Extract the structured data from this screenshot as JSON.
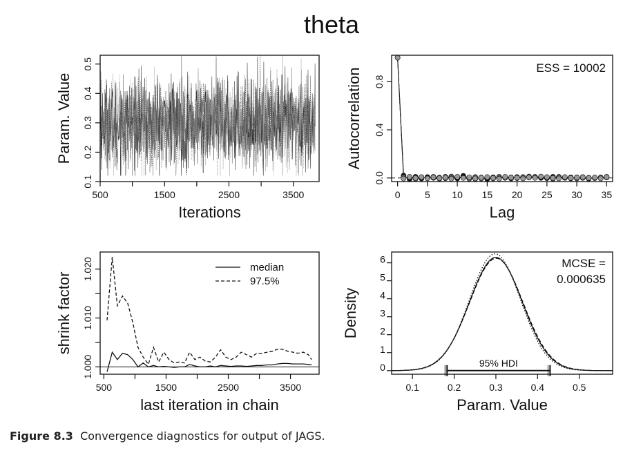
{
  "figure": {
    "title": "theta",
    "caption_label": "Figure 8.3",
    "caption_text": "Convergence diagnostics for output of JAGS."
  },
  "chart_data": [
    {
      "type": "line",
      "panel": "trace",
      "xlabel": "Iterations",
      "ylabel": "Param. Value",
      "xlim": [
        500,
        3900
      ],
      "ylim": [
        0.1,
        0.53
      ],
      "x_ticks": [
        500,
        1000,
        1500,
        2000,
        2500,
        3000,
        3500
      ],
      "x_tick_labels": [
        "500",
        "",
        "1500",
        "",
        "2500",
        "",
        "3500"
      ],
      "y_ticks": [
        0.1,
        0.2,
        0.3,
        0.4,
        0.5
      ],
      "y_tick_labels": [
        "0.1",
        "0.2",
        "0.3",
        "0.4",
        "0.5"
      ],
      "x_start": 500,
      "x_end": 3840,
      "chains": 3,
      "center": 0.3,
      "band": [
        0.16,
        0.46
      ],
      "extremes": [
        0.12,
        0.53
      ],
      "grid": false
    },
    {
      "type": "line",
      "panel": "autocorrelation",
      "xlabel": "Lag",
      "ylabel": "Autocorrelation",
      "annotation": "ESS = 10002",
      "xlim": [
        -1,
        36
      ],
      "ylim": [
        -0.03,
        1.02
      ],
      "x_ticks": [
        0,
        5,
        10,
        15,
        20,
        25,
        30,
        35
      ],
      "y_ticks": [
        0.0,
        0.4,
        0.8
      ],
      "y_tick_labels": [
        "0.0",
        "0.4",
        "0.8"
      ],
      "lags": [
        0,
        1,
        2,
        3,
        4,
        5,
        6,
        7,
        8,
        9,
        10,
        11,
        12,
        13,
        14,
        15,
        16,
        17,
        18,
        19,
        20,
        21,
        22,
        23,
        24,
        25,
        26,
        27,
        28,
        29,
        30,
        31,
        32,
        33,
        34,
        35
      ],
      "series": [
        {
          "values": [
            1.0,
            0.02,
            -0.01,
            0.01,
            -0.005,
            0.008,
            0.0,
            -0.006,
            0.01,
            0.005,
            -0.004,
            0.018,
            0.0,
            -0.008,
            0.004,
            -0.01,
            0.006,
            0.002,
            0.005,
            -0.004,
            0.008,
            0.0,
            0.012,
            0.004,
            0.0,
            -0.002,
            0.01,
            0.005,
            0.0,
            -0.004,
            0.006,
            0.0,
            -0.006,
            0.004,
            0.0,
            0.01
          ]
        },
        {
          "values": [
            1.0,
            0.01,
            0.005,
            -0.008,
            0.004,
            0.0,
            0.01,
            0.004,
            -0.003,
            0.012,
            0.006,
            0.002,
            -0.006,
            0.008,
            -0.005,
            0.003,
            -0.004,
            0.01,
            0.0,
            0.006,
            -0.002,
            0.008,
            0.004,
            0.01,
            0.008,
            0.002,
            -0.006,
            0.01,
            0.004,
            0.006,
            -0.004,
            0.008,
            0.002,
            -0.002,
            0.006,
            0.004
          ]
        },
        {
          "values": [
            1.0,
            -0.005,
            0.01,
            0.0,
            0.008,
            -0.004,
            0.006,
            -0.002,
            0.004,
            -0.006,
            0.01,
            0.0,
            0.006,
            -0.004,
            0.002,
            0.008,
            0.0,
            -0.006,
            0.01,
            0.004,
            0.002,
            -0.004,
            0.006,
            0.0,
            0.012,
            0.008,
            0.0,
            -0.004,
            0.008,
            0.0,
            0.004,
            0.006,
            0.0,
            0.004,
            -0.004,
            0.008
          ]
        }
      ],
      "reference_line": 0,
      "grid": false
    },
    {
      "type": "line",
      "panel": "shrink_factor",
      "xlabel": "last iteration in chain",
      "ylabel": "shrink factor",
      "xlim": [
        440,
        3960
      ],
      "ylim": [
        0.9985,
        1.0235
      ],
      "x_ticks": [
        500,
        1000,
        1500,
        2000,
        2500,
        3000,
        3500
      ],
      "x_tick_labels": [
        "500",
        "",
        "1500",
        "",
        "2500",
        "",
        "3500"
      ],
      "y_ticks": [
        1.0,
        1.005,
        1.01,
        1.015,
        1.02
      ],
      "y_tick_labels": [
        "1.000",
        "",
        "1.010",
        "",
        "1.020"
      ],
      "x": [
        551,
        634,
        717,
        800,
        883,
        966,
        1049,
        1132,
        1215,
        1298,
        1381,
        1464,
        1547,
        1630,
        1713,
        1796,
        1879,
        1962,
        2045,
        2128,
        2211,
        2294,
        2377,
        2460,
        2543,
        2626,
        2709,
        2792,
        2875,
        2958,
        3041,
        3124,
        3207,
        3290,
        3373,
        3456,
        3539,
        3622,
        3705,
        3788,
        3840
      ],
      "series": [
        {
          "name": "median",
          "dash": "solid",
          "values": [
            0.999,
            1.003,
            1.0015,
            1.0028,
            1.0025,
            1.0015,
            1.0,
            1.0008,
            1.0,
            1.0003,
            1.0,
            1.0001,
            1.0,
            0.9999,
            1.0,
            1.0,
            1.0005,
            1.0002,
            1.0,
            1.0,
            1.0002,
            1.0,
            1.0003,
            1.0002,
            1.0001,
            1.0002,
            1.0002,
            1.0001,
            1.0002,
            1.0003,
            1.0003,
            1.0004,
            1.0004,
            1.0006,
            1.0007,
            1.0007,
            1.0006,
            1.0006,
            1.0006,
            1.0005,
            1.0004
          ]
        },
        {
          "name": "97.5%",
          "dash": "dashed",
          "values": [
            1.0095,
            1.0225,
            1.0125,
            1.0145,
            1.013,
            1.009,
            1.004,
            1.002,
            1.0005,
            1.004,
            1.001,
            1.003,
            1.0015,
            1.0008,
            1.001,
            1.0008,
            1.003,
            1.0015,
            1.002,
            1.0012,
            1.001,
            1.002,
            1.0035,
            1.002,
            1.0015,
            1.002,
            1.003,
            1.0025,
            1.002,
            1.0028,
            1.0028,
            1.003,
            1.0032,
            1.0036,
            1.0036,
            1.0032,
            1.003,
            1.0028,
            1.003,
            1.0025,
            1.0015
          ]
        }
      ],
      "reference_line": 1.0,
      "legend": "top-right",
      "grid": false
    },
    {
      "type": "line",
      "panel": "density",
      "xlabel": "Param. Value",
      "ylabel": "Density",
      "annotation": [
        "MCSE =",
        "0.000635"
      ],
      "hdi_label": "95% HDI",
      "hdi": [
        0.183,
        0.43
      ],
      "xlim": [
        0.05,
        0.58
      ],
      "ylim": [
        -0.2,
        6.6
      ],
      "x_ticks": [
        0.1,
        0.2,
        0.3,
        0.4,
        0.5
      ],
      "x_tick_labels": [
        "0.1",
        "0.2",
        "0.3",
        "0.4",
        "0.5"
      ],
      "y_ticks": [
        0,
        1,
        2,
        3,
        4,
        5,
        6
      ],
      "series": [
        {
          "dash": "solid",
          "peak": 6.3,
          "mean": 0.3,
          "sd": 0.0633
        },
        {
          "dash": "dashed",
          "peak": 6.25,
          "mean": 0.301,
          "sd": 0.0641
        },
        {
          "dash": "dotted",
          "peak": 6.5,
          "mean": 0.298,
          "sd": 0.0614
        }
      ],
      "grid": false
    }
  ]
}
